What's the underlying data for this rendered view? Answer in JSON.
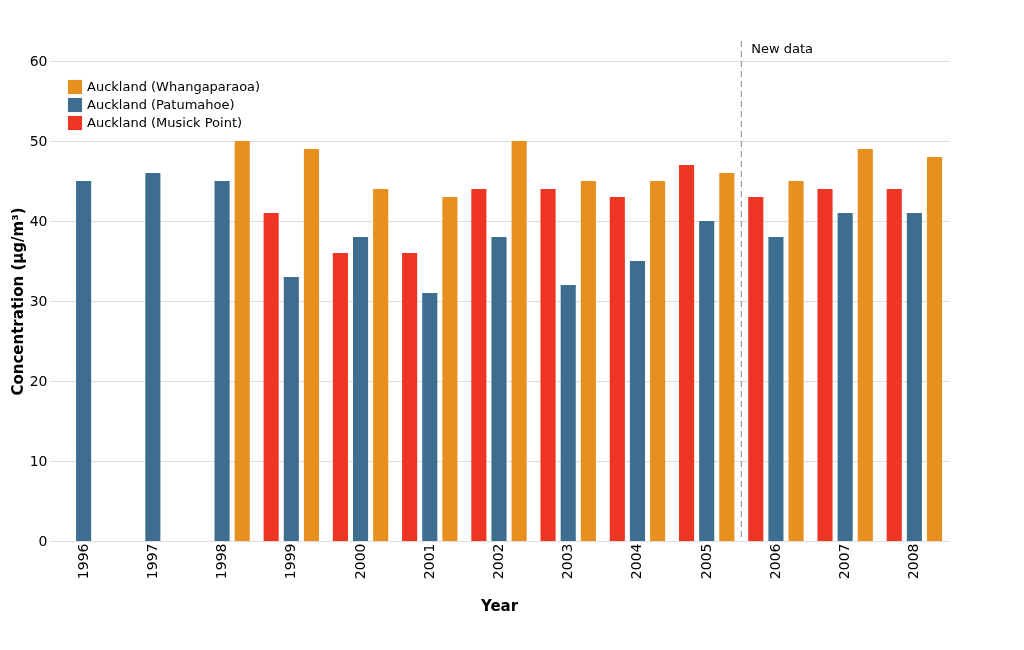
{
  "chart_data": {
    "type": "bar",
    "xlabel": "Year",
    "ylabel": "Concentration (µg/m³)",
    "categories": [
      "1996",
      "1997",
      "1998",
      "1999",
      "2000",
      "2001",
      "2002",
      "2003",
      "2004",
      "2005",
      "2006",
      "2007",
      "2008"
    ],
    "series": [
      {
        "name": "Auckland (Musick Point)",
        "color": "#ee3524",
        "values": [
          null,
          null,
          null,
          41,
          36,
          36,
          44,
          44,
          43,
          47,
          43,
          44,
          44
        ]
      },
      {
        "name": "Auckland (Patumahoe)",
        "color": "#3d6e8f",
        "values": [
          45,
          46,
          45,
          33,
          38,
          31,
          38,
          32,
          35,
          40,
          38,
          41,
          41
        ]
      },
      {
        "name": "Auckland (Whangaparaoa)",
        "color": "#e8901e",
        "values": [
          null,
          null,
          50,
          49,
          44,
          43,
          50,
          45,
          45,
          46,
          45,
          49,
          48
        ]
      }
    ],
    "ylim": [
      0,
      60
    ],
    "yticks": [
      0,
      10,
      20,
      30,
      40,
      50,
      60
    ],
    "grid": "y",
    "legend": "top left",
    "ref_lines": [
      {
        "axis": "x",
        "value": "2006",
        "label": "New data",
        "line_style": "dashed",
        "color": "#888888"
      }
    ]
  }
}
